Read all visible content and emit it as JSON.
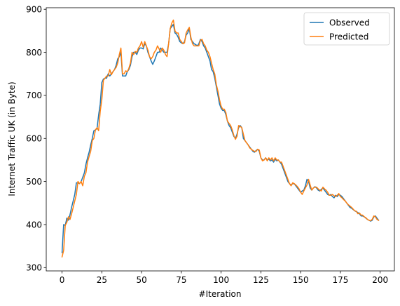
{
  "chart_data": {
    "type": "line",
    "xlabel": "#Iteration",
    "ylabel": "Internet Traffic UK (in Byte)",
    "xlim": [
      -9.95,
      208.95
    ],
    "ylim": [
      292.4,
      903.6
    ],
    "xticks": [
      0,
      25,
      50,
      75,
      100,
      125,
      150,
      175,
      200
    ],
    "yticks": [
      300,
      400,
      500,
      600,
      700,
      800,
      900
    ],
    "legend_position": "top-right",
    "grid": false,
    "series": [
      {
        "name": "Observed",
        "color": "#1f77b4",
        "values": [
          335,
          400,
          398,
          415,
          410,
          423,
          440,
          455,
          470,
          497,
          497,
          495,
          500,
          510,
          520,
          540,
          555,
          568,
          585,
          600,
          618,
          620,
          623,
          655,
          680,
          730,
          738,
          740,
          740,
          750,
          745,
          750,
          755,
          760,
          770,
          785,
          790,
          800,
          745,
          745,
          745,
          755,
          760,
          770,
          790,
          800,
          800,
          795,
          805,
          810,
          810,
          808,
          820,
          815,
          800,
          790,
          780,
          772,
          780,
          790,
          800,
          800,
          810,
          805,
          800,
          800,
          800,
          820,
          855,
          860,
          865,
          845,
          842,
          835,
          825,
          822,
          820,
          825,
          840,
          845,
          855,
          830,
          825,
          820,
          818,
          815,
          820,
          830,
          825,
          815,
          810,
          800,
          790,
          780,
          760,
          755,
          740,
          720,
          700,
          680,
          670,
          665,
          665,
          655,
          640,
          630,
          625,
          615,
          605,
          600,
          610,
          625,
          630,
          625,
          600,
          595,
          590,
          585,
          580,
          575,
          570,
          568,
          572,
          575,
          570,
          555,
          550,
          550,
          555,
          550,
          552,
          548,
          550,
          545,
          552,
          548,
          550,
          545,
          540,
          530,
          520,
          510,
          500,
          495,
          492,
          495,
          495,
          490,
          485,
          480,
          475,
          478,
          480,
          490,
          505,
          500,
          485,
          480,
          485,
          488,
          485,
          480,
          478,
          482,
          485,
          480,
          475,
          470,
          468,
          470,
          465,
          462,
          468,
          465,
          470,
          468,
          465,
          460,
          455,
          450,
          445,
          440,
          438,
          435,
          432,
          430,
          428,
          425,
          420,
          420,
          418,
          415,
          412,
          410,
          408,
          410,
          418,
          420,
          415,
          410
        ]
      },
      {
        "name": "Predicted",
        "color": "#ff7f0e",
        "values": [
          325,
          340,
          398,
          405,
          418,
          412,
          425,
          440,
          455,
          470,
          500,
          495,
          500,
          490,
          512,
          520,
          545,
          558,
          570,
          595,
          600,
          620,
          625,
          618,
          663,
          690,
          735,
          740,
          745,
          745,
          760,
          748,
          755,
          760,
          765,
          775,
          795,
          810,
          750,
          750,
          757,
          755,
          763,
          775,
          800,
          795,
          802,
          800,
          810,
          815,
          825,
          812,
          825,
          815,
          805,
          790,
          785,
          790,
          800,
          805,
          815,
          808,
          800,
          810,
          805,
          795,
          790,
          820,
          855,
          868,
          875,
          850,
          845,
          845,
          830,
          825,
          820,
          822,
          845,
          852,
          858,
          835,
          820,
          815,
          815,
          815,
          815,
          828,
          830,
          820,
          815,
          805,
          800,
          790,
          775,
          760,
          750,
          725,
          710,
          690,
          675,
          668,
          668,
          660,
          640,
          635,
          630,
          620,
          607,
          598,
          605,
          630,
          628,
          625,
          610,
          595,
          590,
          585,
          578,
          575,
          572,
          570,
          570,
          575,
          573,
          555,
          548,
          550,
          555,
          548,
          555,
          550,
          555,
          548,
          555,
          550,
          550,
          545,
          545,
          535,
          525,
          515,
          505,
          495,
          490,
          497,
          495,
          492,
          488,
          483,
          475,
          470,
          478,
          485,
          492,
          505,
          492,
          480,
          485,
          487,
          487,
          483,
          480,
          478,
          487,
          483,
          480,
          475,
          468,
          468,
          470,
          467,
          465,
          468,
          472,
          465,
          462,
          458,
          455,
          450,
          446,
          443,
          440,
          436,
          432,
          431,
          425,
          427,
          422,
          422,
          418,
          416,
          412,
          410,
          409,
          412,
          420,
          418,
          412,
          410
        ]
      }
    ]
  }
}
